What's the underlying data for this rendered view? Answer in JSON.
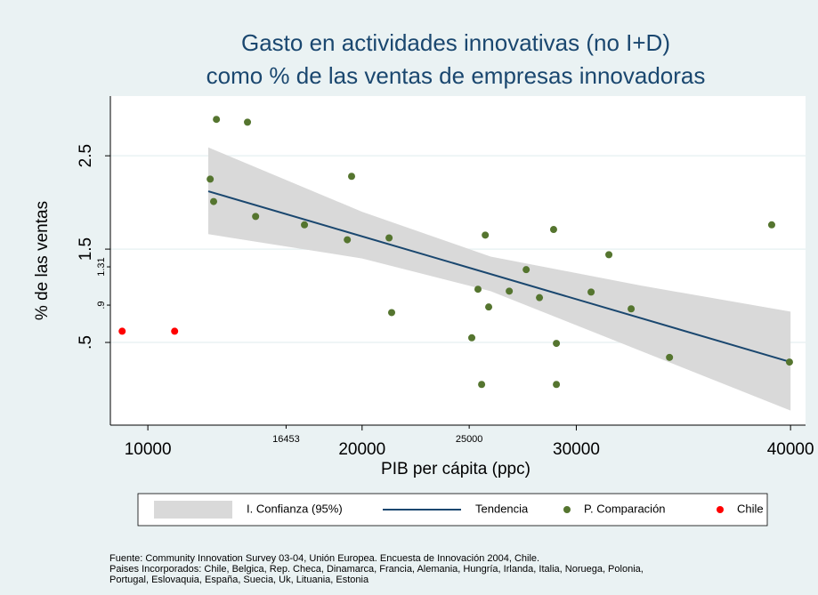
{
  "chart_data": {
    "type": "scatter",
    "title": [
      "Gasto en actividades innovativas (no I+D)",
      "como % de las ventas de empresas innovadoras"
    ],
    "x_label": "PIB per cápita (ppc)",
    "y_label": "% de las ventas",
    "xlim": [
      8250,
      40700
    ],
    "xticks": [
      10000,
      20000,
      30000,
      40000
    ],
    "xticks_minor": [
      16453,
      25000
    ],
    "ylim": [
      -0.386,
      3.14
    ],
    "yticks": [
      {
        "value": 0.5,
        "label": ".5"
      },
      1.5,
      2.5
    ],
    "yticks_minor": [
      {
        "value": 0.9,
        "label": ".9"
      },
      1.31
    ],
    "grid": true,
    "ci": {
      "name": "I. Confianza (95%)",
      "color": "#d9d9d9",
      "x": [
        12820,
        20000,
        26000,
        33000,
        40000
      ],
      "upper": [
        2.59,
        1.9,
        1.42,
        1.11,
        0.83
      ],
      "lower": [
        1.66,
        1.4,
        1.05,
        0.41,
        -0.23
      ]
    },
    "trend": {
      "name": "Tendencia",
      "color": "#1a476f",
      "x": [
        12820,
        40000
      ],
      "values": [
        2.12,
        0.29
      ]
    },
    "series": [
      {
        "name": "P. Comparación",
        "color": "#55752f",
        "x": [
          13200,
          14650,
          12910,
          13070,
          15030,
          17310,
          19510,
          19310,
          21260,
          21380,
          25750,
          25410,
          25910,
          25120,
          25580,
          26870,
          27660,
          28280,
          28940,
          29070,
          29070,
          30690,
          31520,
          32560,
          34350,
          39120,
          39950
        ],
        "values": [
          2.89,
          2.86,
          2.25,
          2.01,
          1.85,
          1.76,
          2.28,
          1.6,
          1.62,
          0.82,
          1.65,
          1.07,
          0.88,
          0.55,
          0.05,
          1.05,
          1.28,
          0.98,
          1.71,
          0.49,
          0.05,
          1.04,
          1.44,
          0.86,
          0.34,
          1.76,
          0.29
        ]
      },
      {
        "name": "Chile",
        "color": "#ff0000",
        "x": [
          8800,
          11250
        ],
        "values": [
          0.62,
          0.62
        ]
      }
    ],
    "notes": [
      "Fuente: Community Innovation Survey 03-04, Unión Europea. Encuesta de Innovación 2004, Chile.",
      "Paises Incorporados: Chile, Belgica, Rep. Checa, Dinamarca, Francia, Alemania, Hungría, Irlanda, Italia, Noruega, Polonia,",
      "Portugal, Eslovaquia, España, Suecia, Uk, Lituania, Estonia"
    ]
  }
}
